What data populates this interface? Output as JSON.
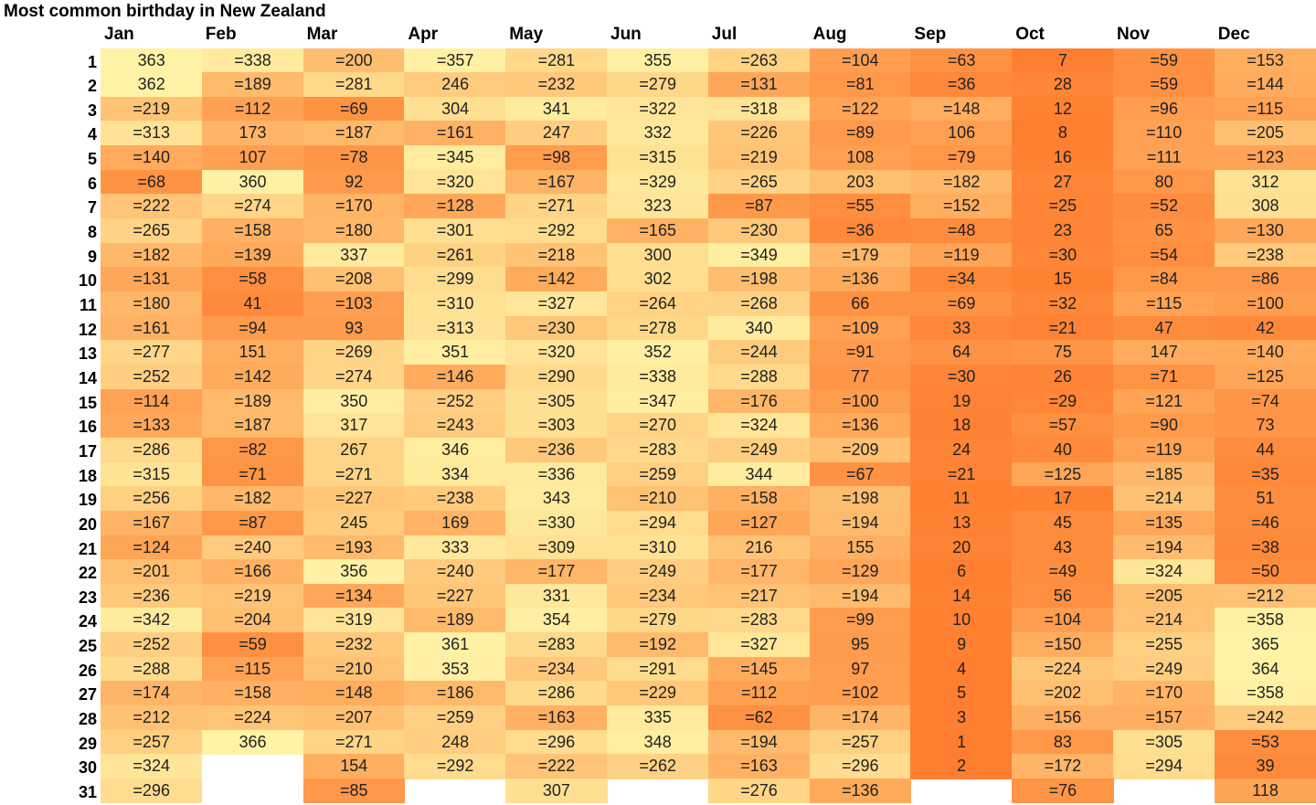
{
  "chart_data": {
    "type": "heatmap",
    "title": "Most common birthday in New Zealand",
    "months": [
      "Jan",
      "Feb",
      "Mar",
      "Apr",
      "May",
      "Jun",
      "Jul",
      "Aug",
      "Sep",
      "Oct",
      "Nov",
      "Dec"
    ],
    "days": [
      "1",
      "2",
      "3",
      "4",
      "5",
      "6",
      "7",
      "8",
      "9",
      "10",
      "11",
      "12",
      "13",
      "14",
      "15",
      "16",
      "17",
      "18",
      "19",
      "20",
      "21",
      "22",
      "23",
      "24",
      "25",
      "26",
      "27",
      "28",
      "29",
      "30",
      "31"
    ],
    "color_scale": {
      "low_rank": "#ff7d2e",
      "high_rank": "#fff3a6"
    },
    "values": [
      [
        "363",
        "=338",
        "=200",
        "=357",
        "=281",
        "355",
        "=263",
        "=104",
        "=63",
        "7",
        "=59",
        "=153"
      ],
      [
        "362",
        "=189",
        "=281",
        "246",
        "=232",
        "=279",
        "=131",
        "=81",
        "=36",
        "28",
        "=59",
        "=144"
      ],
      [
        "=219",
        "=112",
        "=69",
        "304",
        "341",
        "=322",
        "=318",
        "=122",
        "=148",
        "12",
        "=96",
        "=115"
      ],
      [
        "=313",
        "173",
        "=187",
        "=161",
        "247",
        "332",
        "=226",
        "=89",
        "106",
        "8",
        "=110",
        "=205"
      ],
      [
        "=140",
        "107",
        "=78",
        "=345",
        "=98",
        "=315",
        "=219",
        "108",
        "=79",
        "16",
        "=111",
        "=123"
      ],
      [
        "=68",
        "360",
        "92",
        "=320",
        "=167",
        "=329",
        "=265",
        "203",
        "=182",
        "27",
        "80",
        "312"
      ],
      [
        "=222",
        "=274",
        "=170",
        "=128",
        "=271",
        "323",
        "=87",
        "=55",
        "=152",
        "=25",
        "=52",
        "308"
      ],
      [
        "=265",
        "=158",
        "=180",
        "=301",
        "=292",
        "=165",
        "=230",
        "=36",
        "=48",
        "23",
        "65",
        "=130"
      ],
      [
        "=182",
        "=139",
        "337",
        "=261",
        "=218",
        "300",
        "=349",
        "=179",
        "=119",
        "=30",
        "=54",
        "=238"
      ],
      [
        "=131",
        "=58",
        "=208",
        "=299",
        "=142",
        "302",
        "=198",
        "=136",
        "=34",
        "15",
        "=84",
        "=86"
      ],
      [
        "=180",
        "41",
        "=103",
        "=310",
        "=327",
        "=264",
        "=268",
        "66",
        "=69",
        "=32",
        "=115",
        "=100"
      ],
      [
        "=161",
        "=94",
        "93",
        "=313",
        "=230",
        "=278",
        "340",
        "=109",
        "33",
        "=21",
        "47",
        "42"
      ],
      [
        "=277",
        "151",
        "=269",
        "351",
        "=320",
        "352",
        "=244",
        "=91",
        "64",
        "75",
        "147",
        "=140"
      ],
      [
        "=252",
        "=142",
        "=274",
        "=146",
        "=290",
        "=338",
        "=288",
        "77",
        "=30",
        "26",
        "=71",
        "=125"
      ],
      [
        "=114",
        "=189",
        "350",
        "=252",
        "=305",
        "=347",
        "=176",
        "=100",
        "19",
        "=29",
        "=121",
        "=74"
      ],
      [
        "=133",
        "=187",
        "317",
        "=243",
        "=303",
        "=270",
        "=324",
        "=136",
        "18",
        "=57",
        "=90",
        "73"
      ],
      [
        "=286",
        "=82",
        "267",
        "346",
        "=236",
        "=283",
        "=249",
        "=209",
        "24",
        "40",
        "=119",
        "44"
      ],
      [
        "=315",
        "=71",
        "=271",
        "334",
        "=336",
        "=259",
        "344",
        "=67",
        "=21",
        "=125",
        "=185",
        "=35"
      ],
      [
        "=256",
        "=182",
        "=227",
        "=238",
        "343",
        "=210",
        "=158",
        "=198",
        "11",
        "17",
        "=214",
        "51"
      ],
      [
        "=167",
        "=87",
        "245",
        "169",
        "=330",
        "=294",
        "=127",
        "=194",
        "13",
        "45",
        "=135",
        "=46"
      ],
      [
        "=124",
        "=240",
        "=193",
        "333",
        "=309",
        "=310",
        "216",
        "155",
        "20",
        "43",
        "=194",
        "=38"
      ],
      [
        "=201",
        "=166",
        "356",
        "=240",
        "=177",
        "=249",
        "=177",
        "=129",
        "6",
        "=49",
        "=324",
        "=50"
      ],
      [
        "=236",
        "=219",
        "=134",
        "=227",
        "331",
        "=234",
        "=217",
        "=194",
        "14",
        "56",
        "=205",
        "=212"
      ],
      [
        "=342",
        "=204",
        "=319",
        "=189",
        "354",
        "=279",
        "=283",
        "=99",
        "10",
        "=104",
        "=214",
        "=358"
      ],
      [
        "=252",
        "=59",
        "=232",
        "361",
        "=283",
        "=192",
        "=327",
        "95",
        "9",
        "=150",
        "=255",
        "365"
      ],
      [
        "=288",
        "=115",
        "=210",
        "353",
        "=234",
        "=291",
        "=145",
        "97",
        "4",
        "=224",
        "=249",
        "364"
      ],
      [
        "=174",
        "=158",
        "=148",
        "=186",
        "=286",
        "=229",
        "=112",
        "=102",
        "5",
        "=202",
        "=170",
        "=358"
      ],
      [
        "=212",
        "=224",
        "=207",
        "=259",
        "=163",
        "335",
        "=62",
        "=174",
        "3",
        "=156",
        "=157",
        "=242"
      ],
      [
        "=257",
        "366",
        "=271",
        "248",
        "=296",
        "348",
        "=194",
        "=257",
        "1",
        "83",
        "=305",
        "=53"
      ],
      [
        "=324",
        "",
        "154",
        "=292",
        "=222",
        "=262",
        "=163",
        "=296",
        "2",
        "=172",
        "=294",
        "39"
      ],
      [
        "=296",
        "",
        "=85",
        "",
        "307",
        "",
        "=276",
        "=136",
        "",
        "=76",
        "",
        "118"
      ]
    ]
  }
}
